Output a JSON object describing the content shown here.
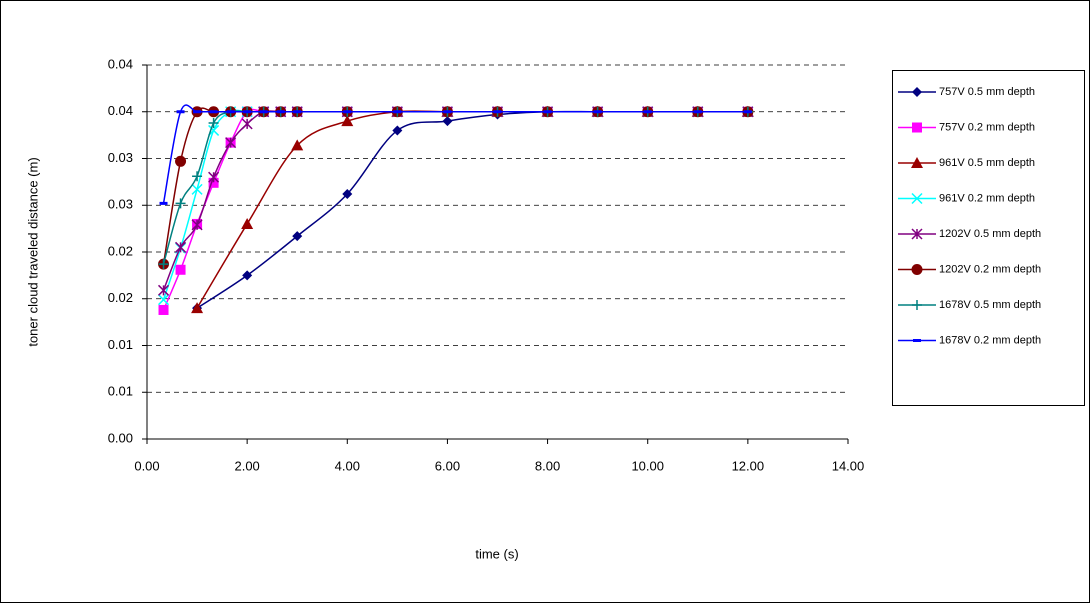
{
  "chart_data": {
    "type": "scatter-smooth",
    "y_label": "toner cloud traveled distance (m)",
    "x_label": "time (s)",
    "xlim": [
      0,
      14
    ],
    "ylim": [
      0,
      0.04
    ],
    "grid": true,
    "legend": "right",
    "xticks": [
      {
        "value": 0,
        "label": "0.00"
      },
      {
        "value": 2,
        "label": "2.00"
      },
      {
        "value": 4,
        "label": "4.00"
      },
      {
        "value": 6,
        "label": "6.00"
      },
      {
        "value": 8,
        "label": "8.00"
      },
      {
        "value": 10,
        "label": "10.00"
      },
      {
        "value": 12,
        "label": "12.00"
      },
      {
        "value": 14,
        "label": "14.00"
      }
    ],
    "yticks": [
      {
        "value": 0,
        "label": "0.00"
      },
      {
        "value": 0.005,
        "label": "0.01"
      },
      {
        "value": 0.01,
        "label": "0.01"
      },
      {
        "value": 0.015,
        "label": "0.02"
      },
      {
        "value": 0.02,
        "label": "0.02"
      },
      {
        "value": 0.025,
        "label": "0.03"
      },
      {
        "value": 0.03,
        "label": "0.03"
      },
      {
        "value": 0.035,
        "label": "0.04"
      },
      {
        "value": 0.04,
        "label": "0.04"
      }
    ],
    "series": [
      {
        "name": "757V 0.5 mm depth",
        "color": "#000080",
        "marker": "diamond",
        "x": [
          1,
          2,
          3,
          4,
          5,
          6,
          7,
          8,
          9,
          10,
          11,
          12
        ],
        "values": [
          0.014,
          0.0175,
          0.0217,
          0.0262,
          0.033,
          0.034,
          0.0347,
          0.035,
          0.035,
          0.035,
          0.035,
          0.035
        ]
      },
      {
        "name": "757V 0.2 mm depth",
        "color": "#ff00ff",
        "marker": "square",
        "x": [
          0.33,
          0.67,
          1,
          1.33,
          1.67,
          2,
          2.33,
          2.67,
          3,
          4,
          5,
          6,
          7,
          8,
          9,
          10,
          11,
          12
        ],
        "values": [
          0.0138,
          0.0181,
          0.023,
          0.0274,
          0.0317,
          0.035,
          0.035,
          0.035,
          0.035,
          0.035,
          0.035,
          0.035,
          0.035,
          0.035,
          0.035,
          0.035,
          0.035,
          0.035
        ]
      },
      {
        "name": "961V 0.5 mm depth",
        "color": "#990000",
        "marker": "triangle",
        "x": [
          1,
          2,
          3,
          4,
          5,
          6,
          7,
          8,
          9,
          10,
          11,
          12
        ],
        "values": [
          0.014,
          0.023,
          0.0314,
          0.034,
          0.035,
          0.035,
          0.035,
          0.035,
          0.035,
          0.035,
          0.035,
          0.035
        ]
      },
      {
        "name": "961V 0.2 mm depth",
        "color": "#00ffff",
        "marker": "x",
        "x": [
          0.33,
          0.67,
          1,
          1.33,
          1.67,
          2,
          2.33,
          2.67,
          3,
          4,
          5,
          6,
          7,
          8,
          9,
          10,
          11,
          12
        ],
        "values": [
          0.0149,
          0.0204,
          0.0267,
          0.033,
          0.035,
          0.035,
          0.035,
          0.035,
          0.035,
          0.035,
          0.035,
          0.035,
          0.035,
          0.035,
          0.035,
          0.035,
          0.035,
          0.035
        ]
      },
      {
        "name": "1202V 0.5 mm depth",
        "color": "#800080",
        "marker": "star",
        "x": [
          0.33,
          0.67,
          1,
          1.33,
          1.67,
          2,
          2.33,
          2.67,
          3,
          4,
          5,
          6,
          7,
          8,
          9,
          10,
          11,
          12
        ],
        "values": [
          0.0159,
          0.0205,
          0.0229,
          0.028,
          0.0317,
          0.0337,
          0.035,
          0.035,
          0.035,
          0.035,
          0.035,
          0.035,
          0.035,
          0.035,
          0.035,
          0.035,
          0.035,
          0.035
        ]
      },
      {
        "name": "1202V 0.2 mm depth",
        "color": "#800000",
        "marker": "circle",
        "x": [
          0.33,
          0.67,
          1,
          1.33,
          1.67,
          2,
          2.33,
          2.67,
          3,
          4,
          5,
          6,
          7,
          8,
          9,
          10,
          11,
          12
        ],
        "values": [
          0.0187,
          0.0297,
          0.035,
          0.035,
          0.035,
          0.035,
          0.035,
          0.035,
          0.035,
          0.035,
          0.035,
          0.035,
          0.035,
          0.035,
          0.035,
          0.035,
          0.035,
          0.035
        ]
      },
      {
        "name": "1678V 0.5 mm depth",
        "color": "#008080",
        "marker": "plus",
        "x": [
          0.33,
          0.67,
          1,
          1.33,
          1.67,
          2,
          2.33,
          2.67,
          3,
          4,
          5,
          6,
          7,
          8,
          9,
          10,
          11,
          12
        ],
        "values": [
          0.0187,
          0.0252,
          0.0281,
          0.0338,
          0.035,
          0.035,
          0.035,
          0.035,
          0.035,
          0.035,
          0.035,
          0.035,
          0.035,
          0.035,
          0.035,
          0.035,
          0.035,
          0.035
        ]
      },
      {
        "name": "1678V 0.2 mm depth",
        "color": "#0000ff",
        "marker": "dash",
        "x": [
          0.33,
          0.67,
          1,
          1.33,
          1.67,
          2,
          2.33,
          2.67,
          3,
          4,
          5,
          6,
          7,
          8,
          9,
          10,
          11,
          12
        ],
        "values": [
          0.0252,
          0.035,
          0.035,
          0.035,
          0.035,
          0.035,
          0.035,
          0.035,
          0.035,
          0.035,
          0.035,
          0.035,
          0.035,
          0.035,
          0.035,
          0.035,
          0.035,
          0.035
        ]
      }
    ]
  }
}
